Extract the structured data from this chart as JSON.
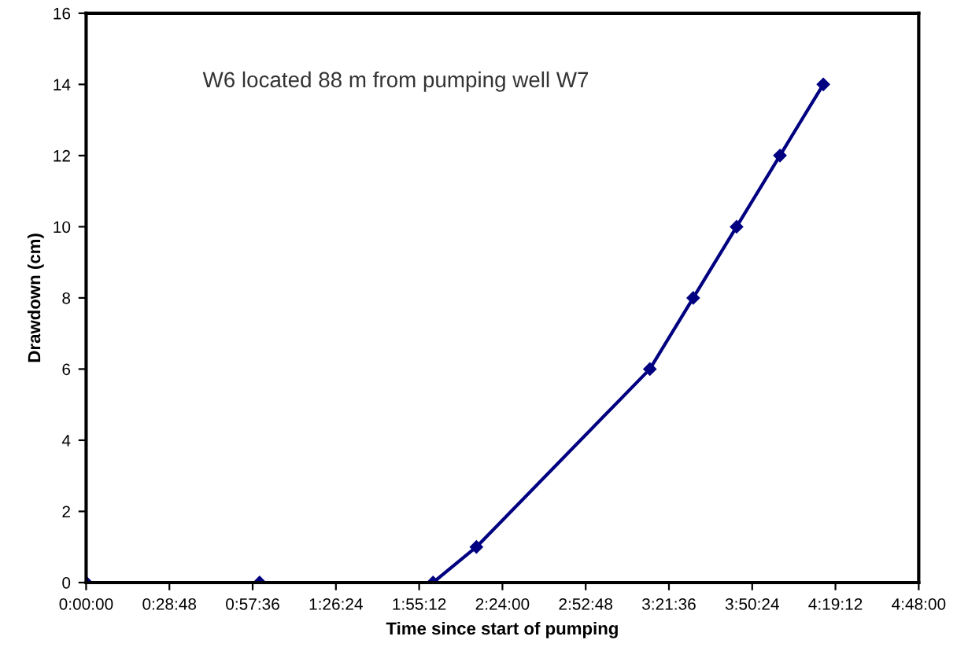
{
  "chart_data": {
    "type": "line",
    "xlabel": "Time since start of pumping",
    "ylabel": "Drawdown (cm)",
    "annotations": [
      "W6 located 88 m from pumping well W7"
    ],
    "x": [
      0,
      1,
      2,
      2.25,
      3.25,
      3.5,
      3.75,
      4,
      4.25
    ],
    "series": [
      {
        "color": "#000080",
        "values": [
          0,
          0,
          0,
          1,
          6,
          8,
          10,
          12,
          14
        ]
      }
    ],
    "xlim": [
      0,
      4.8
    ],
    "xticks": [
      {
        "value": 0,
        "label": "0:00:00"
      },
      {
        "value": 0.48,
        "label": "0:28:48"
      },
      {
        "value": 0.96,
        "label": "0:57:36"
      },
      {
        "value": 1.44,
        "label": "1:26:24"
      },
      {
        "value": 1.92,
        "label": "1:55:12"
      },
      {
        "value": 2.4,
        "label": "2:24:00"
      },
      {
        "value": 2.88,
        "label": "2:52:48"
      },
      {
        "value": 3.36,
        "label": "3:21:36"
      },
      {
        "value": 3.84,
        "label": "3:50:24"
      },
      {
        "value": 4.32,
        "label": "4:19:12"
      },
      {
        "value": 4.8,
        "label": "4:48:00"
      }
    ],
    "ylim": [
      0,
      16
    ],
    "yticks": [
      0,
      2,
      4,
      6,
      8,
      10,
      12,
      14,
      16
    ],
    "grid": false,
    "marker": "diamond",
    "line_style": "solid"
  }
}
